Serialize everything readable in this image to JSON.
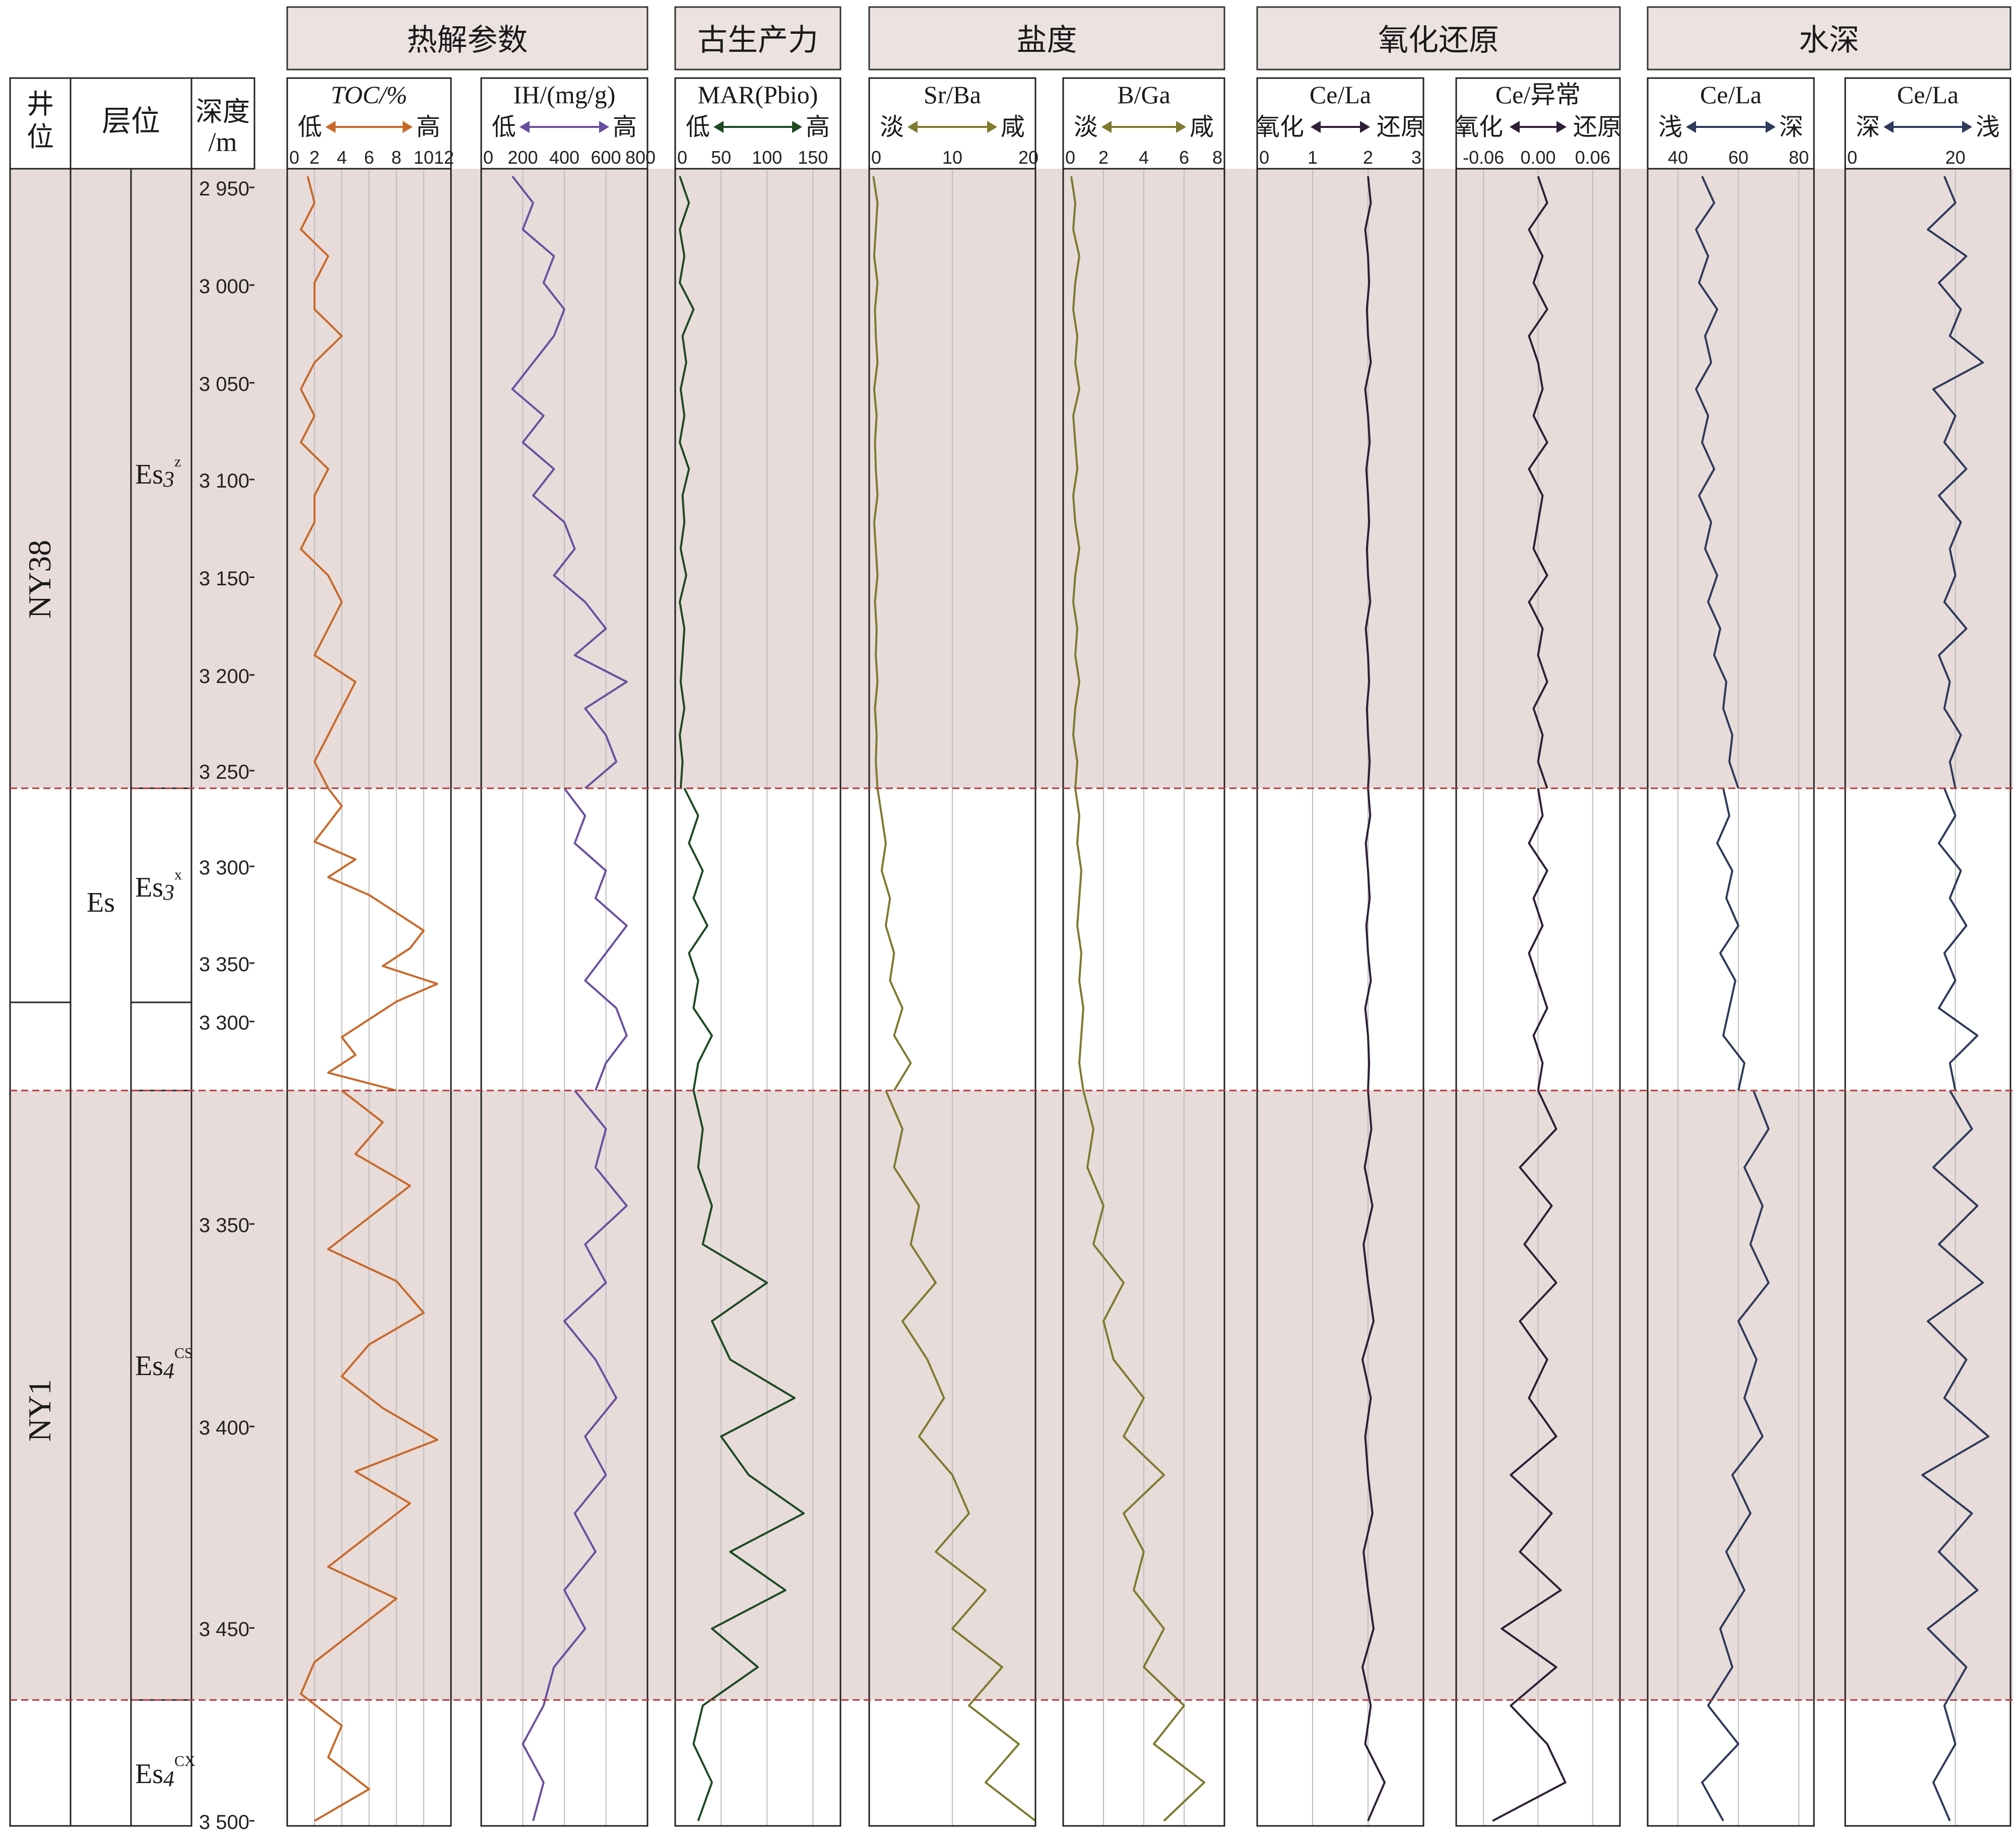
{
  "header": {
    "left_columns": {
      "well": "井位",
      "horizon": "层位",
      "depth": "深度",
      "depth_unit": "/m"
    },
    "groups": [
      {
        "id": "pyrolysis",
        "label": "热解参数"
      },
      {
        "id": "paleo",
        "label": "古生产力"
      },
      {
        "id": "salinity",
        "label": "盐度"
      },
      {
        "id": "redox",
        "label": "氧化还原"
      },
      {
        "id": "water",
        "label": "水深"
      }
    ]
  },
  "wells": [
    {
      "name": "NY38",
      "shaded": true
    },
    {
      "name": "NY1",
      "shaded": true
    }
  ],
  "strata": {
    "group": "Es",
    "formations": [
      {
        "name": "Es3",
        "sup": "z"
      },
      {
        "name": "Es3",
        "sup": "x"
      },
      {
        "name": "Es4",
        "sup": "CS"
      },
      {
        "name": "Es4",
        "sup": "CX"
      }
    ]
  },
  "depth_labels": [
    "2 950",
    "3 000",
    "3 050",
    "3 100",
    "3 150",
    "3 200",
    "3 250",
    "3 300",
    "3 350",
    "3 300",
    "3 350",
    "3 400",
    "3 450",
    "3 500"
  ],
  "chart_data": {
    "type": "line",
    "panels": [
      {
        "id": "toc",
        "title": "TOC/%",
        "low": "低",
        "high": "高",
        "color": "#c8692a",
        "xlim": [
          0,
          12
        ],
        "ticks": [
          "0",
          "2",
          "4",
          "6",
          "8",
          "10",
          "12"
        ],
        "segments": [
          [
            1.5,
            2,
            1,
            3,
            2,
            2,
            4,
            2,
            1,
            2,
            1,
            3,
            2,
            2,
            1,
            3,
            4,
            3,
            2,
            5,
            4,
            3,
            2,
            3
          ],
          [
            3,
            4,
            3,
            2,
            5,
            3,
            6,
            8,
            10,
            9,
            7,
            11,
            8,
            6,
            4,
            5,
            3,
            8
          ],
          [
            4,
            7,
            5,
            9,
            6,
            3,
            8,
            10,
            6,
            4,
            7,
            11,
            5,
            9,
            6,
            3,
            8,
            5,
            2,
            1,
            4,
            3,
            6,
            2
          ]
        ]
      },
      {
        "id": "ih",
        "title": "IH/(mg/g)",
        "low": "低",
        "high": "高",
        "color": "#6a4fa0",
        "xlim": [
          0,
          800
        ],
        "ticks": [
          "0",
          "200",
          "400",
          "600",
          "800"
        ],
        "segments": [
          [
            150,
            250,
            200,
            350,
            300,
            400,
            350,
            250,
            150,
            300,
            200,
            350,
            250,
            400,
            450,
            350,
            500,
            600,
            450,
            700,
            500,
            600,
            650,
            500
          ],
          [
            400,
            500,
            450,
            600,
            550,
            700,
            600,
            500,
            650,
            700,
            600,
            550
          ],
          [
            450,
            600,
            550,
            700,
            500,
            600,
            400,
            550,
            650,
            500,
            600,
            450,
            550,
            400,
            500,
            350,
            300,
            200,
            300,
            250
          ]
        ]
      },
      {
        "id": "mar",
        "title": "MAR(Pbio)",
        "low": "低",
        "high": "高",
        "color": "#1d4a22",
        "xlim": [
          0,
          180
        ],
        "ticks": [
          "0",
          "50",
          "100",
          "150"
        ],
        "segments": [
          [
            5,
            15,
            5,
            10,
            5,
            20,
            8,
            12,
            6,
            10,
            5,
            15,
            8,
            10,
            6,
            12,
            5,
            10,
            8,
            6,
            10,
            5,
            8,
            6
          ],
          [
            10,
            25,
            15,
            30,
            20,
            35,
            15,
            25,
            20,
            40,
            25,
            20
          ],
          [
            20,
            30,
            25,
            40,
            30,
            100,
            40,
            60,
            130,
            50,
            80,
            140,
            60,
            120,
            40,
            90,
            30,
            20,
            40,
            25
          ]
        ]
      },
      {
        "id": "srba",
        "title": "Sr/Ba",
        "low": "淡",
        "high": "咸",
        "color": "#7e7a2e",
        "xlim": [
          0,
          20
        ],
        "ticks": [
          "0",
          "10",
          "20"
        ],
        "segments": [
          [
            0.5,
            1,
            0.8,
            0.6,
            1,
            0.7,
            0.8,
            1,
            0.6,
            0.9,
            0.7,
            0.8,
            1,
            0.6,
            0.8,
            1,
            0.7,
            0.9,
            0.8,
            1,
            0.7,
            0.9,
            0.8,
            1
          ],
          [
            1,
            1.5,
            2,
            1.5,
            2.5,
            2,
            3,
            2.5,
            4,
            3,
            5,
            3
          ],
          [
            2,
            4,
            3,
            6,
            5,
            8,
            4,
            7,
            9,
            6,
            10,
            12,
            8,
            14,
            10,
            16,
            12,
            18,
            14,
            20
          ]
        ]
      },
      {
        "id": "bga",
        "title": "B/Ga",
        "low": "淡",
        "high": "咸",
        "color": "#7e7a2e",
        "xlim": [
          0,
          8
        ],
        "ticks": [
          "0",
          "2",
          "4",
          "6",
          "8"
        ],
        "segments": [
          [
            0.4,
            0.6,
            0.5,
            0.8,
            0.6,
            0.5,
            0.7,
            0.6,
            0.8,
            0.5,
            0.6,
            0.7,
            0.5,
            0.6,
            0.8,
            0.6,
            0.5,
            0.7,
            0.6,
            0.8,
            0.6,
            0.5,
            0.7,
            0.6
          ],
          [
            0.6,
            0.8,
            0.7,
            0.9,
            0.8,
            0.7,
            0.9,
            0.8,
            1,
            0.9,
            0.8,
            1
          ],
          [
            1,
            1.5,
            1.2,
            2,
            1.5,
            3,
            2,
            2.5,
            4,
            3,
            5,
            3,
            4,
            3.5,
            5,
            4,
            6,
            4.5,
            7,
            5
          ]
        ]
      },
      {
        "id": "cela1",
        "title": "Ce/La",
        "low": "氧化",
        "high": "还原",
        "color": "#2e1f36",
        "xlim": [
          0,
          3
        ],
        "ticks": [
          "0",
          "1",
          "2",
          "3"
        ],
        "segments": [
          [
            2,
            2.05,
            1.95,
            2,
            2.02,
            1.98,
            2,
            2.05,
            1.95,
            2,
            2.03,
            1.97,
            2,
            2.02,
            1.98,
            2,
            2.04,
            1.96,
            2,
            2.02,
            1.98,
            2,
            2.03,
            2
          ],
          [
            2,
            2.04,
            1.96,
            2,
            2.03,
            1.97,
            2,
            2.05,
            1.95,
            2,
            2.02,
            2
          ],
          [
            2,
            2.06,
            1.94,
            2.08,
            1.92,
            2,
            2.1,
            1.9,
            2.05,
            1.95,
            2,
            2.08,
            1.92,
            2,
            2.1,
            1.9,
            2.05,
            1.95,
            2.3,
            2
          ]
        ]
      },
      {
        "id": "ceanom",
        "title": "Ce/异常",
        "low": "氧化",
        "high": "还原",
        "color": "#2e1f36",
        "xlim": [
          -0.09,
          0.09
        ],
        "ticks": [
          "-0.06",
          "0.00",
          "0.06"
        ],
        "segments": [
          [
            0,
            0.01,
            -0.01,
            0.005,
            -0.005,
            0.01,
            -0.01,
            0,
            0.005,
            -0.005,
            0.01,
            -0.01,
            0.005,
            0,
            -0.005,
            0.01,
            -0.01,
            0.005,
            0,
            0.01,
            -0.005,
            0.005,
            0,
            0.01
          ],
          [
            0,
            0.005,
            -0.01,
            0.01,
            -0.005,
            0.005,
            -0.01,
            0,
            0.01,
            -0.005,
            0.005,
            0
          ],
          [
            0,
            0.02,
            -0.02,
            0.015,
            -0.015,
            0.02,
            -0.02,
            0.01,
            -0.01,
            0.02,
            -0.03,
            0.015,
            -0.02,
            0.025,
            -0.04,
            0.02,
            -0.03,
            0.01,
            0.03,
            -0.05
          ]
        ]
      },
      {
        "id": "cela2",
        "title": "Ce/La",
        "low": "浅",
        "high": "深",
        "color": "#2e3a5a",
        "xlim": [
          30,
          85
        ],
        "ticks": [
          "40",
          "60",
          "80"
        ],
        "segments": [
          [
            48,
            52,
            46,
            50,
            47,
            53,
            49,
            51,
            46,
            50,
            48,
            52,
            47,
            51,
            49,
            53,
            50,
            54,
            52,
            56,
            55,
            58,
            57,
            60
          ],
          [
            55,
            57,
            53,
            58,
            56,
            60,
            54,
            59,
            57,
            55,
            62,
            60
          ],
          [
            65,
            70,
            62,
            68,
            64,
            70,
            60,
            66,
            62,
            68,
            58,
            64,
            56,
            62,
            54,
            58,
            50,
            60,
            48,
            55
          ]
        ]
      },
      {
        "id": "cela3",
        "title": "Ce/La",
        "low": "深",
        "high": "浅",
        "color": "#2e3a5a",
        "xlim": [
          0,
          30
        ],
        "ticks": [
          "0",
          "20"
        ],
        "segments": [
          [
            18,
            20,
            15,
            22,
            17,
            21,
            19,
            25,
            16,
            20,
            18,
            22,
            17,
            21,
            19,
            20,
            18,
            22,
            17,
            19,
            18,
            21,
            19,
            20
          ],
          [
            18,
            20,
            17,
            21,
            19,
            22,
            18,
            20,
            17,
            24,
            19,
            20
          ],
          [
            19,
            23,
            16,
            24,
            17,
            25,
            15,
            22,
            18,
            26,
            14,
            23,
            17,
            24,
            15,
            22,
            18,
            20,
            16,
            19
          ]
        ]
      }
    ]
  }
}
